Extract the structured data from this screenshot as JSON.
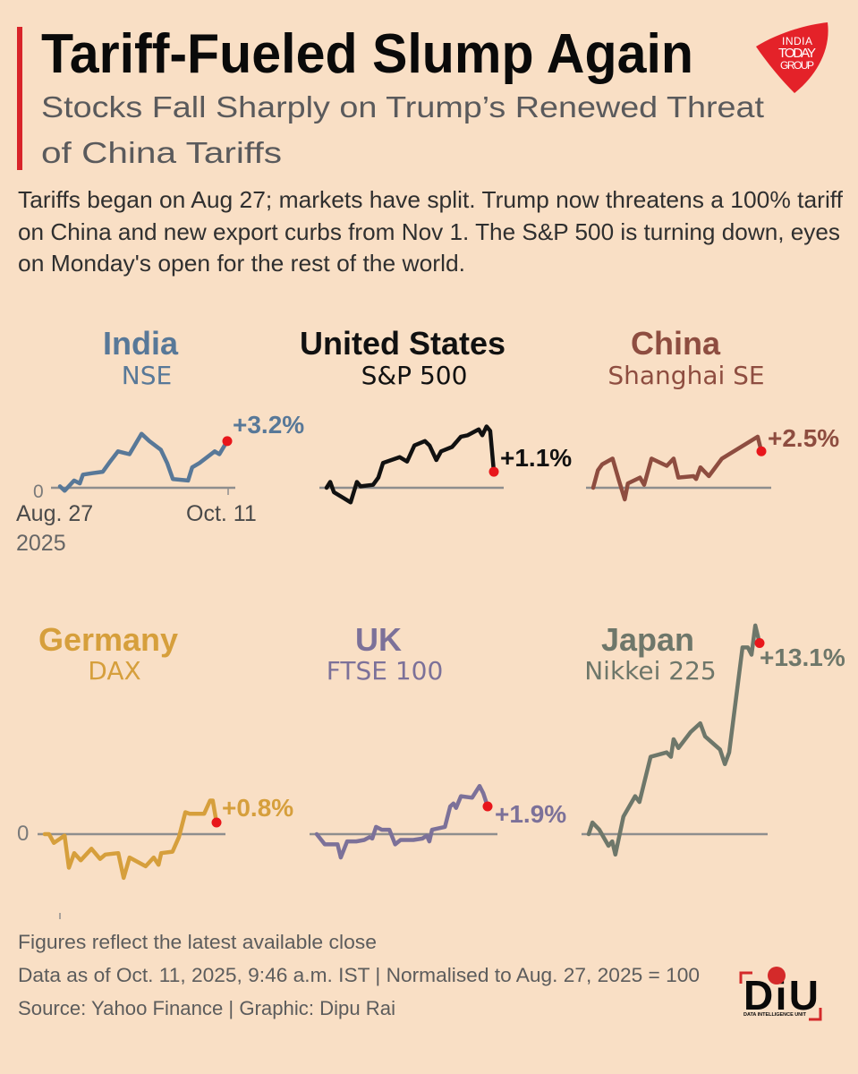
{
  "header": {
    "title": "Tariff-Fueled Slump Again",
    "subtitle_lines": [
      "Stocks Fall Sharply on Trump’s Renewed Threat",
      "of China Tariffs"
    ],
    "accent_color": "#d8242a"
  },
  "brand": {
    "logo_lines": [
      "INDIA",
      "TODAY",
      "GROUP"
    ],
    "logo_color": "#e42229"
  },
  "intro": {
    "lines": [
      "Tariffs began on Aug 27; markets have split. Trump now threatens a 100% tariff",
      "on China and new export curbs from Nov 1. The S&P 500 is turning down, eyes",
      "on Monday's open for the rest of the world."
    ]
  },
  "marker_color": "#e8161b",
  "axis_color": "#8e8e8e",
  "chart_data": [
    {
      "type": "line",
      "title": "India",
      "subtitle": "NSE",
      "color": "#587898",
      "end_label": "+3.2%",
      "end_value": 3.2,
      "zero_label": "0",
      "x_tick_labels": [
        "Aug. 27",
        "Oct. 11"
      ],
      "x_tick_year": "2025",
      "series": [
        {
          "name": "NSE",
          "points": [
            [
              0,
              0.1
            ],
            [
              0.9,
              -0.2
            ],
            [
              2.7,
              0.5
            ],
            [
              3.8,
              0.3
            ],
            [
              4.4,
              0.9
            ],
            [
              6.2,
              1.0
            ],
            [
              8.2,
              1.1
            ],
            [
              9.6,
              1.8
            ],
            [
              11.1,
              2.5
            ],
            [
              13.3,
              2.3
            ],
            [
              15.6,
              3.7
            ],
            [
              17.1,
              3.2
            ],
            [
              19.3,
              2.6
            ],
            [
              20.5,
              1.7
            ],
            [
              21.6,
              0.6
            ],
            [
              24.5,
              0.5
            ],
            [
              25.3,
              1.4
            ],
            [
              26.7,
              1.7
            ],
            [
              29.6,
              2.5
            ],
            [
              30.5,
              2.3
            ],
            [
              32,
              3.2
            ]
          ]
        }
      ]
    },
    {
      "type": "line",
      "title": "United States",
      "subtitle": "S&P 500",
      "color": "#111111",
      "end_label": "+1.1%",
      "end_value": 1.1,
      "series": [
        {
          "name": "S&P 500",
          "points": [
            [
              0,
              0
            ],
            [
              0.7,
              0.4
            ],
            [
              1.4,
              -0.3
            ],
            [
              4.6,
              -1.0
            ],
            [
              5.8,
              0.4
            ],
            [
              6.5,
              0.1
            ],
            [
              8.9,
              0.2
            ],
            [
              9.9,
              0.7
            ],
            [
              10.8,
              1.7
            ],
            [
              14.0,
              2.1
            ],
            [
              15.4,
              1.8
            ],
            [
              16.8,
              2.9
            ],
            [
              18.8,
              3.2
            ],
            [
              19.7,
              2.9
            ],
            [
              21.0,
              1.9
            ],
            [
              21.9,
              2.5
            ],
            [
              24.0,
              2.8
            ],
            [
              25.7,
              3.5
            ],
            [
              27.0,
              3.6
            ],
            [
              29.1,
              4.0
            ],
            [
              29.8,
              3.6
            ],
            [
              30.6,
              4.2
            ],
            [
              31.3,
              3.9
            ],
            [
              32,
              1.1
            ]
          ]
        }
      ]
    },
    {
      "type": "line",
      "title": "China",
      "subtitle": "Shanghai SE",
      "color": "#8e4d40",
      "end_label": "+2.5%",
      "end_value": 2.5,
      "series": [
        {
          "name": "Shanghai SE",
          "points": [
            [
              0,
              0
            ],
            [
              0.9,
              1.2
            ],
            [
              1.7,
              1.6
            ],
            [
              3.7,
              2.0
            ],
            [
              4.9,
              0.5
            ],
            [
              6.0,
              -0.8
            ],
            [
              6.6,
              0.3
            ],
            [
              8.9,
              0.7
            ],
            [
              9.7,
              0.2
            ],
            [
              11.1,
              2.0
            ],
            [
              14.0,
              1.5
            ],
            [
              15.3,
              2.0
            ],
            [
              16.2,
              0.7
            ],
            [
              19.1,
              0.8
            ],
            [
              19.6,
              0.6
            ],
            [
              20.4,
              1.4
            ],
            [
              22.0,
              0.8
            ],
            [
              24.5,
              2.0
            ],
            [
              31.3,
              3.5
            ],
            [
              32,
              2.5
            ]
          ]
        }
      ]
    },
    {
      "type": "line",
      "title": "Germany",
      "subtitle": "DAX",
      "color": "#d69f3c",
      "end_label": "+0.8%",
      "end_value": 0.8,
      "zero_label": "0",
      "series": [
        {
          "name": "DAX",
          "points": [
            [
              0,
              0
            ],
            [
              0.8,
              0
            ],
            [
              1.7,
              -0.6
            ],
            [
              3.7,
              -0.1
            ],
            [
              4.5,
              -2.3
            ],
            [
              5.5,
              -1.3
            ],
            [
              6.7,
              -1.8
            ],
            [
              8.7,
              -1.0
            ],
            [
              10.3,
              -1.7
            ],
            [
              11.3,
              -1.4
            ],
            [
              13.7,
              -1.3
            ],
            [
              14.7,
              -3.0
            ],
            [
              15.8,
              -1.6
            ],
            [
              18.8,
              -2.2
            ],
            [
              20.3,
              -1.6
            ],
            [
              21.2,
              -2.1
            ],
            [
              21.7,
              -1.3
            ],
            [
              23.8,
              -1.2
            ],
            [
              25.0,
              -0.2
            ],
            [
              26.2,
              1.5
            ],
            [
              27.0,
              1.4
            ],
            [
              29.7,
              1.4
            ],
            [
              30.8,
              2.3
            ],
            [
              31.3,
              2.3
            ],
            [
              32,
              0.8
            ]
          ]
        }
      ]
    },
    {
      "type": "line",
      "title": "UK",
      "subtitle": "FTSE 100",
      "color": "#7c7199",
      "end_label": "+1.9%",
      "end_value": 1.9,
      "series": [
        {
          "name": "FTSE 100",
          "points": [
            [
              0,
              0
            ],
            [
              1.5,
              -0.7
            ],
            [
              3.9,
              -0.7
            ],
            [
              4.5,
              -1.6
            ],
            [
              5.7,
              -0.5
            ],
            [
              7.4,
              -0.5
            ],
            [
              8.9,
              -0.4
            ],
            [
              9.9,
              -0.2
            ],
            [
              10.4,
              -0.3
            ],
            [
              11.1,
              0.5
            ],
            [
              12.2,
              0.3
            ],
            [
              13.6,
              0.3
            ],
            [
              14.7,
              -0.7
            ],
            [
              15.7,
              -0.4
            ],
            [
              18.1,
              -0.4
            ],
            [
              19.8,
              -0.3
            ],
            [
              20.6,
              -0.1
            ],
            [
              21.1,
              -0.5
            ],
            [
              21.6,
              0.3
            ],
            [
              24.0,
              0.5
            ],
            [
              25.0,
              1.9
            ],
            [
              25.6,
              2.1
            ],
            [
              26.1,
              1.8
            ],
            [
              27.0,
              2.6
            ],
            [
              29.1,
              2.5
            ],
            [
              30.5,
              3.3
            ],
            [
              31.2,
              2.8
            ],
            [
              32,
              1.9
            ]
          ]
        }
      ]
    },
    {
      "type": "line",
      "title": "Japan",
      "subtitle": "Nikkei 225",
      "color": "#6e776a",
      "end_label": "+13.1%",
      "end_value": 13.1,
      "series": [
        {
          "name": "Nikkei 225",
          "points": [
            [
              0,
              0
            ],
            [
              0.7,
              0.8
            ],
            [
              2.0,
              0.3
            ],
            [
              3.7,
              -0.8
            ],
            [
              4.4,
              -0.5
            ],
            [
              5.0,
              -1.4
            ],
            [
              6.5,
              1.2
            ],
            [
              8.7,
              2.6
            ],
            [
              9.5,
              2.2
            ],
            [
              11.6,
              5.3
            ],
            [
              14.6,
              5.6
            ],
            [
              15.4,
              5.3
            ],
            [
              15.9,
              6.5
            ],
            [
              16.8,
              5.9
            ],
            [
              19.1,
              7.0
            ],
            [
              20.9,
              7.6
            ],
            [
              21.8,
              6.7
            ],
            [
              24.6,
              5.8
            ],
            [
              25.5,
              4.8
            ],
            [
              26.3,
              5.6
            ],
            [
              28.8,
              12.8
            ],
            [
              29.8,
              12.8
            ],
            [
              30.5,
              12.3
            ],
            [
              31.2,
              14.3
            ],
            [
              32,
              13.1
            ]
          ]
        }
      ]
    }
  ],
  "footer": {
    "lines": [
      "Figures reflect the latest available close",
      "Data as of Oct. 11, 2025, 9:46 a.m. IST | Normalised to Aug. 27, 2025 = 100",
      "Source: Yahoo Finance | Graphic: Dipu Rai"
    ],
    "unit_logo": {
      "text": "DiU",
      "tagline": "DATA INTELLIGENCE UNIT"
    }
  }
}
